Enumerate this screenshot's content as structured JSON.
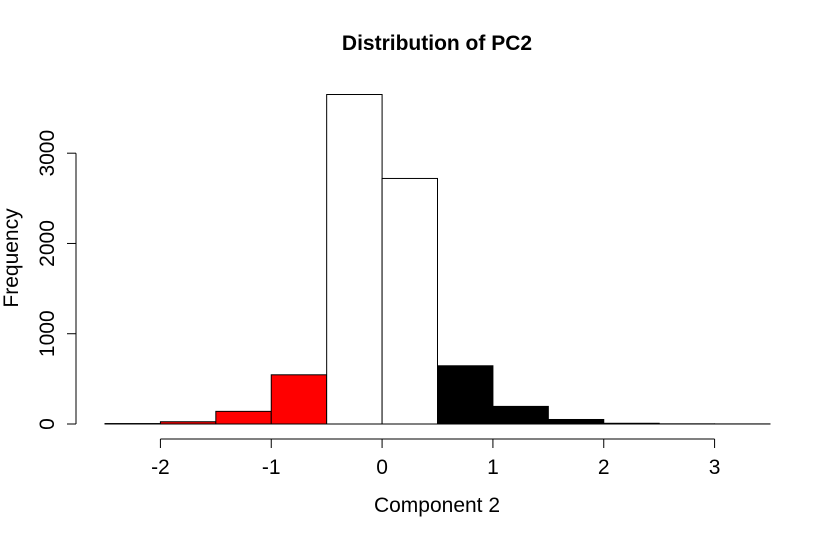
{
  "chart_data": {
    "type": "bar",
    "title": "Distribution of PC2",
    "xlabel": "Component 2",
    "ylabel": "Frequency",
    "xlim": [
      -2.5,
      3.5
    ],
    "ylim": [
      0,
      3700
    ],
    "x_ticks": [
      -2,
      -1,
      0,
      1,
      2,
      3
    ],
    "y_ticks": [
      0,
      1000,
      2000,
      3000
    ],
    "bin_width": 0.5,
    "bins": [
      {
        "x0": -2.5,
        "x1": -2.0,
        "value": 5,
        "color": "#000000"
      },
      {
        "x0": -2.0,
        "x1": -1.5,
        "value": 25,
        "color": "#ff0000"
      },
      {
        "x0": -1.5,
        "x1": -1.0,
        "value": 140,
        "color": "#ff0000"
      },
      {
        "x0": -1.0,
        "x1": -0.5,
        "value": 545,
        "color": "#ff0000"
      },
      {
        "x0": -0.5,
        "x1": 0.0,
        "value": 3650,
        "color": "#ffffff"
      },
      {
        "x0": 0.0,
        "x1": 0.5,
        "value": 2720,
        "color": "#ffffff"
      },
      {
        "x0": 0.5,
        "x1": 1.0,
        "value": 645,
        "color": "#000000"
      },
      {
        "x0": 1.0,
        "x1": 1.5,
        "value": 195,
        "color": "#000000"
      },
      {
        "x0": 1.5,
        "x1": 2.0,
        "value": 50,
        "color": "#000000"
      },
      {
        "x0": 2.0,
        "x1": 2.5,
        "value": 8,
        "color": "#000000"
      },
      {
        "x0": 2.5,
        "x1": 3.0,
        "value": 2,
        "color": "#000000"
      },
      {
        "x0": 3.0,
        "x1": 3.5,
        "value": 1,
        "color": "#000000"
      }
    ],
    "grid": false,
    "legend": "none"
  }
}
